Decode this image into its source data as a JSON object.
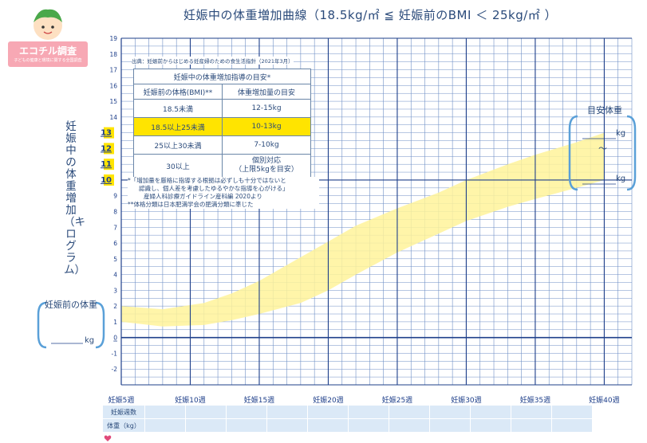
{
  "title": "妊娠中の体重増加曲線（18.5kg/㎡ ≦ 妊娠前のBMI ＜ 25kg/㎡ ）",
  "logo": {
    "text": "エコチル調査",
    "subtext": "子どもの健康と環境に関する全国調査"
  },
  "y_axis_label": "妊娠中の体重増加（キログラム）",
  "pre_weight": {
    "label": "妊娠前の体重",
    "unit": "kg"
  },
  "target_weight": {
    "label": "目安体重",
    "unit": "kg",
    "tilde": "～"
  },
  "source_note": "出典：妊娠前からはじめる妊産婦のための食生活指針（2021年3月）",
  "guide_table": {
    "caption": "妊娠中の体重増加指導の目安*",
    "headers": [
      "妊娠前の体格(BMI)**",
      "体重増加量の目安"
    ],
    "rows": [
      [
        "18.5未満",
        "12-15kg"
      ],
      [
        "18.5以上25未満",
        "10-13kg"
      ],
      [
        "25以上30未満",
        "7-10kg"
      ],
      [
        "30以上",
        "個別対応\n（上限5kgを目安）"
      ]
    ]
  },
  "notes": [
    "*「増加量を厳格に指導する根拠は必ずしも十分ではないと",
    "認識し、個人差を考慮したゆるやかな指導を心がける」",
    "産婦人科診療ガイドライン産科編 2020より",
    "**体格分類は日本肥満学会の肥満分類に準じた"
  ],
  "bottom_rows": [
    "妊娠週数",
    "体重（kg）"
  ],
  "colors": {
    "grid": "#1e3f8a",
    "grid_fine": "#6f8fc6",
    "band": "#fff39a",
    "highlight": "#ffe400",
    "accent_blue": "#5aa0d8",
    "cell_bg": "#dbe9f7"
  },
  "chart_data": {
    "type": "area",
    "title": "妊娠中の体重増加曲線（18.5kg/㎡ ≦ 妊娠前のBMI ＜ 25kg/㎡ ）",
    "ylabel": "妊娠中の体重増加（キログラム）",
    "xlabel": "",
    "x_ticks": [
      {
        "week": 5,
        "label": "妊娠5週"
      },
      {
        "week": 10,
        "label": "妊娠10週"
      },
      {
        "week": 15,
        "label": "妊娠15週"
      },
      {
        "week": 20,
        "label": "妊娠20週"
      },
      {
        "week": 25,
        "label": "妊娠25週"
      },
      {
        "week": 30,
        "label": "妊娠30週"
      },
      {
        "week": 35,
        "label": "妊娠35週"
      },
      {
        "week": 40,
        "label": "妊娠40週"
      }
    ],
    "xlim": [
      5,
      42
    ],
    "ylim": [
      -3,
      19
    ],
    "y_ticks": [
      -2,
      -1,
      0,
      1,
      2,
      3,
      4,
      5,
      6,
      7,
      8,
      9,
      10,
      11,
      12,
      13,
      14,
      15,
      16,
      17,
      18,
      19
    ],
    "y_tick_labels_highlighted": [
      10,
      11,
      12,
      13
    ],
    "series": [
      {
        "band": true,
        "x": [
          5,
          8,
          11,
          13,
          15,
          18,
          20,
          22,
          25,
          28,
          30,
          33,
          35,
          38,
          40
        ],
        "upper": [
          2.0,
          1.8,
          2.2,
          2.8,
          3.6,
          5.1,
          6.1,
          7.1,
          8.2,
          9.2,
          10.0,
          11.0,
          11.6,
          12.4,
          13.0
        ],
        "lower": [
          1.0,
          0.7,
          0.8,
          1.1,
          1.5,
          2.2,
          3.0,
          4.0,
          5.4,
          6.6,
          7.4,
          8.3,
          8.8,
          9.5,
          10.0
        ]
      }
    ]
  }
}
